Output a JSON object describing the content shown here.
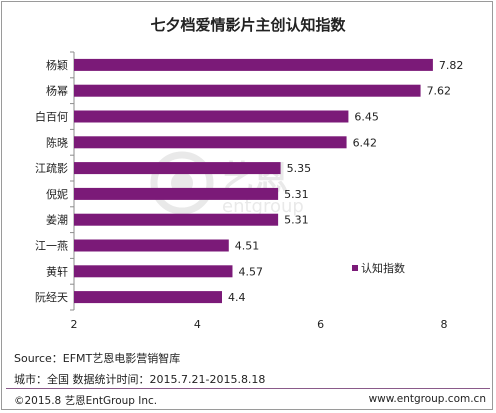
{
  "chart_data": {
    "type": "bar",
    "orientation": "horizontal",
    "title": "七夕档爱情影片主创认知指数",
    "categories": [
      "杨颖",
      "杨幂",
      "白百何",
      "陈晓",
      "江疏影",
      "倪妮",
      "姜潮",
      "江一燕",
      "黄轩",
      "阮经天"
    ],
    "values": [
      7.82,
      7.62,
      6.45,
      6.42,
      5.35,
      5.31,
      5.31,
      4.51,
      4.57,
      4.4
    ],
    "value_labels": [
      "7.82",
      "7.62",
      "6.45",
      "6.42",
      "5.35",
      "5.31",
      "5.31",
      "4.51",
      "4.57",
      "4.4"
    ],
    "series": [
      {
        "name": "认知指数",
        "values": [
          7.82,
          7.62,
          6.45,
          6.42,
          5.35,
          5.31,
          5.31,
          4.51,
          4.57,
          4.4
        ]
      }
    ],
    "xlim": [
      2,
      8
    ],
    "xticks": [
      "2",
      "4",
      "6",
      "8"
    ],
    "grid": false,
    "legend": "right",
    "bar_color": "#7b1a78"
  },
  "watermark": {
    "brand": "艺恩",
    "brand_latin": "entgroup"
  },
  "footer": {
    "source": "Source：EFMT艺恩电影营销智库",
    "scope": "城市：全国   数据统计时间：2015.7.21-2015.8.18",
    "copyright": "©2015.8 艺恩EntGroup Inc.",
    "website": "www.entgroup.com.cn"
  }
}
